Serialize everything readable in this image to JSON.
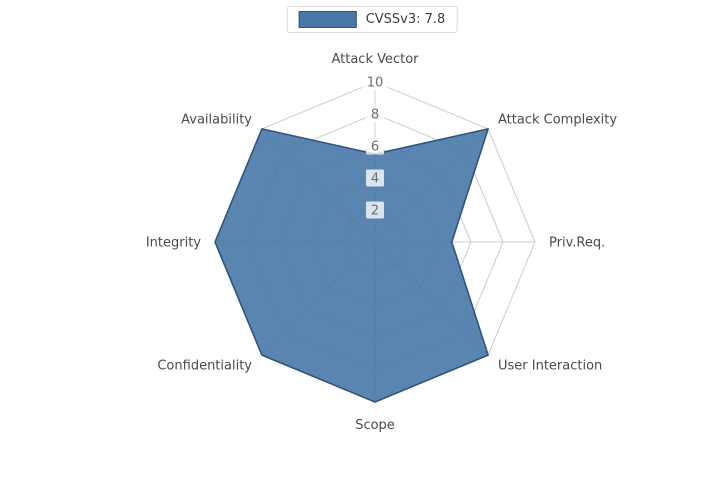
{
  "chart_data": {
    "type": "radar",
    "title": "",
    "legend_position": "upper center",
    "grid": true,
    "rmax": 10,
    "radial_ticks": [
      2,
      4,
      6,
      8,
      10
    ],
    "axes": [
      "Attack Vector",
      "Attack Complexity",
      "Priv.Req.",
      "User Interaction",
      "Scope",
      "Confidentiality",
      "Integrity",
      "Availability"
    ],
    "series": [
      {
        "name": "CVSSv3: 7.8",
        "values": [
          5.5,
          10,
          4.8,
          10,
          10,
          10,
          10,
          10
        ],
        "fill": "#4878a8",
        "stroke": "#30547c"
      }
    ],
    "colors": {
      "grid": "#cccccc",
      "text": "#4a4a4a",
      "tick_text": "#6e6e6e",
      "background": "#ffffff"
    }
  }
}
